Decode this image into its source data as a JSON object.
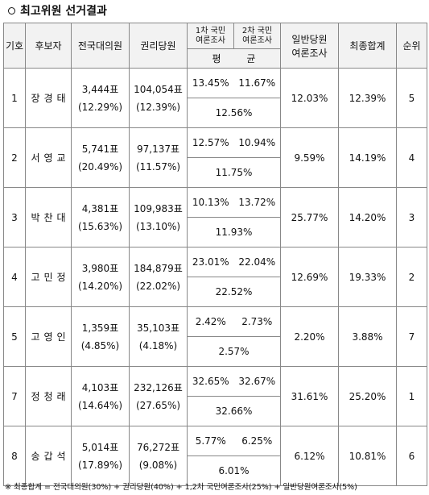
{
  "title": "최고위원 선거결과",
  "headers": {
    "num": "기호",
    "name": "후보자",
    "national": "전국대의원",
    "party": "권리당원",
    "poll1": "1차 국민\n여론조사",
    "poll2": "2차 국민\n여론조사",
    "avg": "평 균",
    "general": "일반당원\n여론조사",
    "total": "최종합계",
    "rank": "순위"
  },
  "candidates": [
    {
      "num": "1",
      "name": "장경태",
      "national_votes": "3,444표",
      "national_pct": "(12.29%)",
      "party_votes": "104,054표",
      "party_pct": "(12.39%)",
      "poll1": "13.45%",
      "poll2": "11.67%",
      "avg": "12.56%",
      "general": "12.03%",
      "total": "12.39%",
      "rank": "5"
    },
    {
      "num": "2",
      "name": "서영교",
      "national_votes": "5,741표",
      "national_pct": "(20.49%)",
      "party_votes": "97,137표",
      "party_pct": "(11.57%)",
      "poll1": "12.57%",
      "poll2": "10.94%",
      "avg": "11.75%",
      "general": "9.59%",
      "total": "14.19%",
      "rank": "4"
    },
    {
      "num": "3",
      "name": "박찬대",
      "national_votes": "4,381표",
      "national_pct": "(15.63%)",
      "party_votes": "109,983표",
      "party_pct": "(13.10%)",
      "poll1": "10.13%",
      "poll2": "13.72%",
      "avg": "11.93%",
      "general": "25.77%",
      "total": "14.20%",
      "rank": "3"
    },
    {
      "num": "4",
      "name": "고민정",
      "national_votes": "3,980표",
      "national_pct": "(14.20%)",
      "party_votes": "184,879표",
      "party_pct": "(22.02%)",
      "poll1": "23.01%",
      "poll2": "22.04%",
      "avg": "22.52%",
      "general": "12.69%",
      "total": "19.33%",
      "rank": "2"
    },
    {
      "num": "5",
      "name": "고영인",
      "national_votes": "1,359표",
      "national_pct": "(4.85%)",
      "party_votes": "35,103표",
      "party_pct": "(4.18%)",
      "poll1": "2.42%",
      "poll2": "2.73%",
      "avg": "2.57%",
      "general": "2.20%",
      "total": "3.88%",
      "rank": "7"
    },
    {
      "num": "7",
      "name": "정청래",
      "national_votes": "4,103표",
      "national_pct": "(14.64%)",
      "party_votes": "232,126표",
      "party_pct": "(27.65%)",
      "poll1": "32.65%",
      "poll2": "32.67%",
      "avg": "32.66%",
      "general": "31.61%",
      "total": "25.20%",
      "rank": "1"
    },
    {
      "num": "8",
      "name": "송갑석",
      "national_votes": "5,014표",
      "national_pct": "(17.89%)",
      "party_votes": "76,272표",
      "party_pct": "(9.08%)",
      "poll1": "5.77%",
      "poll2": "6.25%",
      "avg": "6.01%",
      "general": "6.12%",
      "total": "10.81%",
      "rank": "6"
    }
  ],
  "footnote": "※ 최종합계 = 전국대의원(30%) + 권리당원(40%) + 1,2차 국민여론조사(25%) + 일반당원여론조사(5%)"
}
